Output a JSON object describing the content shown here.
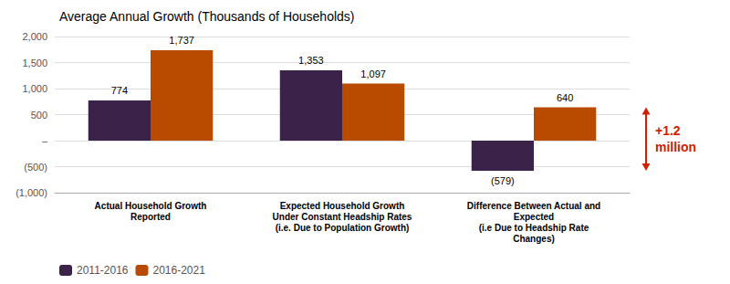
{
  "chart_data": {
    "type": "bar",
    "title": "Average Annual Growth (Thousands of Households)",
    "categories": [
      "Actual Household Growth\nReported",
      "Expected Household Growth\nUnder Constant Headship Rates\n(i.e. Due to Population Growth)",
      "Difference Between Actual and\nExpected\n(i.e Due to Headship Rate\nChanges)"
    ],
    "series": [
      {
        "name": "2011-2016",
        "color": "#3b2249",
        "values": [
          774,
          1353,
          -579
        ],
        "value_labels": [
          "774",
          "1,353",
          "(579)"
        ]
      },
      {
        "name": "2016-2021",
        "color": "#b84b00",
        "values": [
          1737,
          1097,
          640
        ],
        "value_labels": [
          "1,737",
          "1,097",
          "640"
        ]
      }
    ],
    "ylim": [
      -1000,
      2000
    ],
    "yticks": [
      {
        "value": -1000,
        "label": "(1,000)"
      },
      {
        "value": -500,
        "label": "(500)"
      },
      {
        "value": 0,
        "label": "–"
      },
      500,
      {
        "value": 1000,
        "label": "1,000"
      },
      {
        "value": 1500,
        "label": "1,500"
      },
      {
        "value": 2000,
        "label": "2,000"
      }
    ],
    "grid": true,
    "legend": "lower left",
    "data_labels": true,
    "annotations": [
      {
        "text": "+1.2\nmillion",
        "color": "#cc2200",
        "y_from": -579,
        "y_to": 640
      }
    ]
  }
}
